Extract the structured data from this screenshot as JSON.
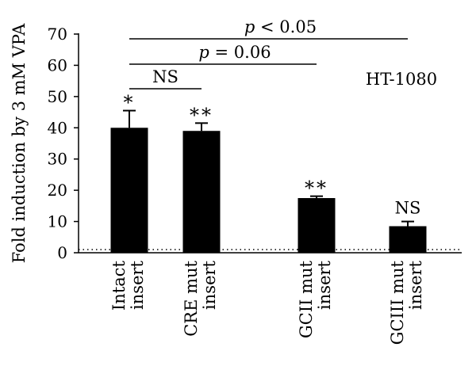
{
  "chart_data": {
    "type": "bar",
    "categories": [
      [
        "Intact",
        "insert"
      ],
      [
        "CRE mut",
        "insert"
      ],
      [
        "GCII mut",
        "insert"
      ],
      [
        "GCIII mut",
        "insert"
      ]
    ],
    "values": [
      40,
      39,
      17.5,
      8.5
    ],
    "errors": [
      5.5,
      2.5,
      0.6,
      1.5
    ],
    "significance": [
      "*",
      "**",
      "**",
      "NS"
    ],
    "ylabel": "Fold induction by 3 mM VPA",
    "ylim": [
      0,
      70
    ],
    "yticks": [
      0,
      10,
      20,
      30,
      40,
      50,
      60,
      70
    ],
    "baseline_value": 1,
    "baseline_style": "dotted",
    "annotation": "HT-1080",
    "comparisons": [
      {
        "from": 0,
        "to": 1,
        "prefix": "",
        "label": "NS"
      },
      {
        "from": 0,
        "to": 2,
        "prefix": "p",
        "label": " = 0.06"
      },
      {
        "from": 0,
        "to": 3,
        "prefix": "p",
        "label": " < 0.05"
      }
    ],
    "bar_color": "#000000",
    "grid": false
  }
}
